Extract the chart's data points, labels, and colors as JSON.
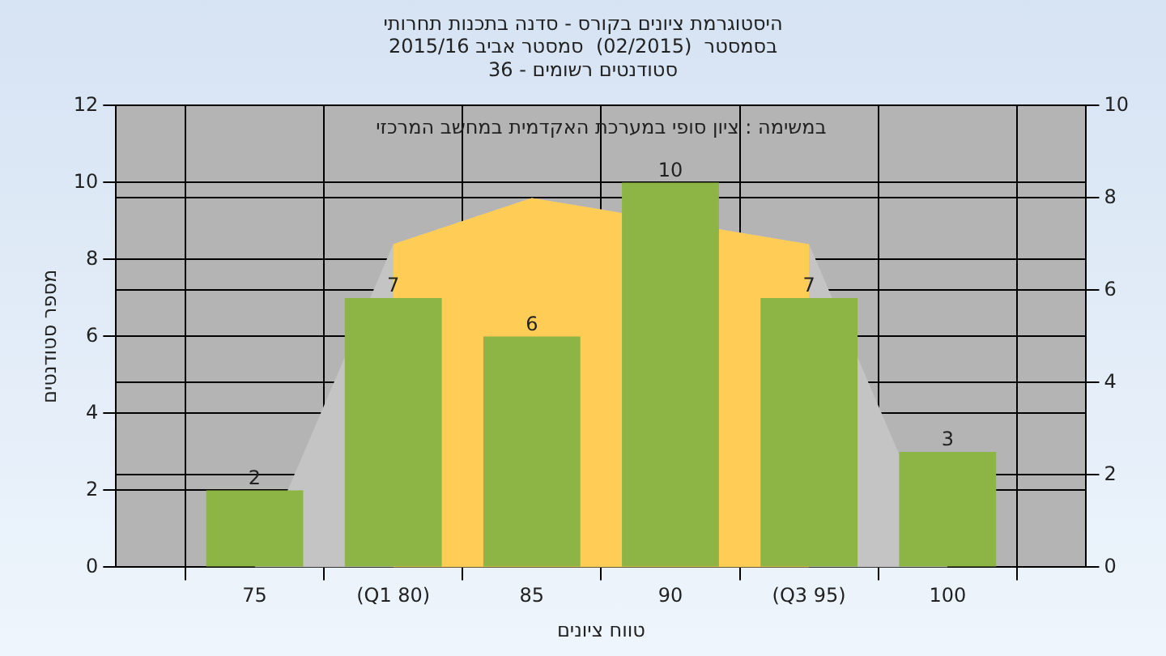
{
  "chart_data": {
    "type": "bar",
    "title": "היסטוגרמת ציונים בקורס - סדנה בתכנות תחרותי",
    "subtitle": "בסמסטר  (02/2015)  סמסטר אביב 2015/16\nסטודנטים רשומים - 36",
    "xlabel": "טווח ציונים",
    "ylabel": "מספר סטודנטים",
    "annotations": [
      "במשימה : ציון סופי במערכת האקדמית במחשב המרכזי"
    ],
    "categories": [
      null,
      "75",
      "(Q1 80)",
      "85",
      "90",
      "(Q3 95)",
      "100",
      null
    ],
    "series": [
      {
        "color": "#8db545",
        "values": [
          null,
          2,
          7,
          6,
          10,
          7,
          3,
          null
        ],
        "value_labels": [
          null,
          "2",
          "7",
          "6",
          "10",
          "7",
          "3",
          null
        ]
      },
      {
        "type": "area",
        "axis": "y2",
        "color": "#c4c4c4",
        "values": [
          null,
          0,
          7,
          8,
          null,
          7,
          0,
          null
        ]
      },
      {
        "type": "area",
        "axis": "y2",
        "color": "#ffcc55",
        "values": [
          null,
          null,
          7,
          8,
          null,
          7,
          null,
          null
        ]
      }
    ],
    "ylim": [
      0,
      12
    ],
    "yticks": [
      0,
      2,
      4,
      6,
      8,
      10,
      12
    ],
    "y2lim": [
      0,
      10
    ],
    "y2ticks": [
      0,
      2,
      4,
      6,
      8,
      10
    ],
    "grid": true,
    "legend": false
  }
}
